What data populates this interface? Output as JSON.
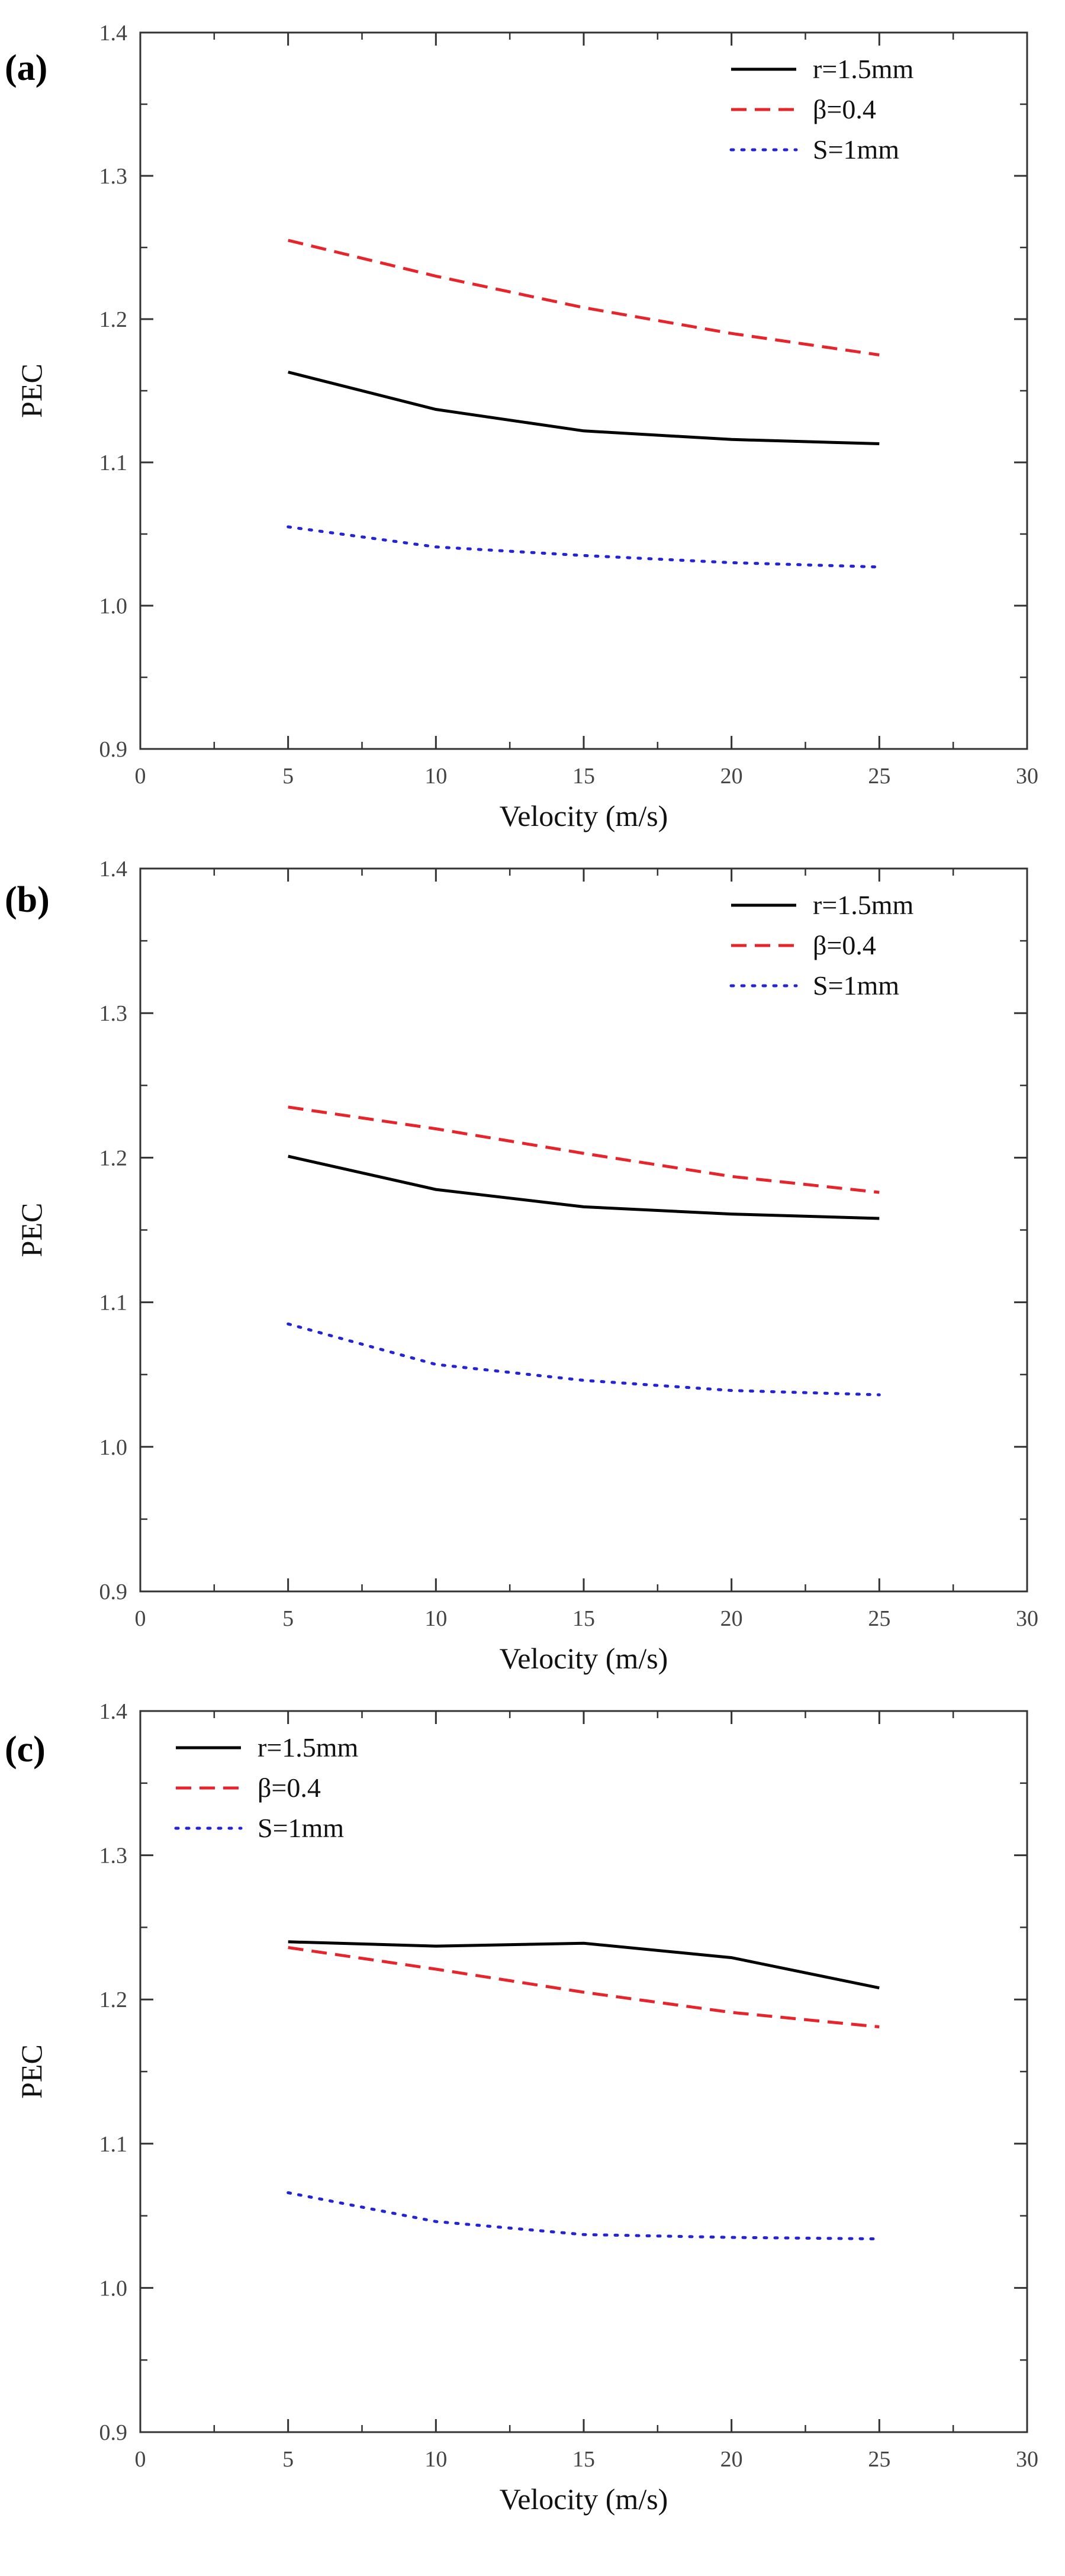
{
  "chart_data": [
    {
      "type": "line",
      "panel_label": "(a)",
      "xlabel": "Velocity (m/s)",
      "ylabel": "PEC",
      "xlim": [
        0,
        30
      ],
      "ylim": [
        0.9,
        1.4
      ],
      "xticks": [
        0,
        5,
        10,
        15,
        20,
        25,
        30
      ],
      "xtick_labels": [
        "0",
        "5",
        "10",
        "15",
        "20",
        "25",
        "30"
      ],
      "yticks": [
        0.9,
        1.0,
        1.1,
        1.2,
        1.3,
        1.4
      ],
      "ytick_labels": [
        "0.9",
        "1.0",
        "1.1",
        "1.2",
        "1.3",
        "1.4"
      ],
      "grid": false,
      "legend_position": "top-right",
      "x": [
        5,
        10,
        15,
        20,
        25
      ],
      "series": [
        {
          "name": "r=1.5mm",
          "values": [
            1.163,
            1.137,
            1.122,
            1.116,
            1.113
          ],
          "color": "#000000",
          "style": "solid"
        },
        {
          "name": "β=0.4",
          "values": [
            1.255,
            1.23,
            1.208,
            1.19,
            1.175
          ],
          "color": "#e8232a",
          "style": "dashed"
        },
        {
          "name": "S=1mm",
          "values": [
            1.055,
            1.041,
            1.035,
            1.03,
            1.027
          ],
          "color": "#2323d8",
          "style": "dotted"
        }
      ]
    },
    {
      "type": "line",
      "panel_label": "(b)",
      "xlabel": "Velocity (m/s)",
      "ylabel": "PEC",
      "xlim": [
        0,
        30
      ],
      "ylim": [
        0.9,
        1.4
      ],
      "xticks": [
        0,
        5,
        10,
        15,
        20,
        25,
        30
      ],
      "xtick_labels": [
        "0",
        "5",
        "10",
        "15",
        "20",
        "25",
        "30"
      ],
      "yticks": [
        0.9,
        1.0,
        1.1,
        1.2,
        1.3,
        1.4
      ],
      "ytick_labels": [
        "0.9",
        "1.0",
        "1.1",
        "1.2",
        "1.3",
        "1.4"
      ],
      "grid": false,
      "legend_position": "top-right",
      "x": [
        5,
        10,
        15,
        20,
        25
      ],
      "series": [
        {
          "name": "r=1.5mm",
          "values": [
            1.201,
            1.178,
            1.166,
            1.161,
            1.158
          ],
          "color": "#000000",
          "style": "solid"
        },
        {
          "name": "β=0.4",
          "values": [
            1.235,
            1.22,
            1.203,
            1.187,
            1.176
          ],
          "color": "#e8232a",
          "style": "dashed"
        },
        {
          "name": "S=1mm",
          "values": [
            1.085,
            1.057,
            1.046,
            1.039,
            1.036
          ],
          "color": "#2323d8",
          "style": "dotted"
        }
      ]
    },
    {
      "type": "line",
      "panel_label": "(c)",
      "xlabel": "Velocity (m/s)",
      "ylabel": "PEC",
      "xlim": [
        0,
        30
      ],
      "ylim": [
        0.9,
        1.4
      ],
      "xticks": [
        0,
        5,
        10,
        15,
        20,
        25,
        30
      ],
      "xtick_labels": [
        "0",
        "5",
        "10",
        "15",
        "20",
        "25",
        "30"
      ],
      "yticks": [
        0.9,
        1.0,
        1.1,
        1.2,
        1.3,
        1.4
      ],
      "ytick_labels": [
        "0.9",
        "1.0",
        "1.1",
        "1.2",
        "1.3",
        "1.4"
      ],
      "grid": false,
      "legend_position": "top-left",
      "x": [
        5,
        10,
        15,
        20,
        25
      ],
      "series": [
        {
          "name": "r=1.5mm",
          "values": [
            1.24,
            1.237,
            1.239,
            1.229,
            1.208
          ],
          "color": "#000000",
          "style": "solid"
        },
        {
          "name": "β=0.4",
          "values": [
            1.236,
            1.221,
            1.205,
            1.191,
            1.181
          ],
          "color": "#e8232a",
          "style": "dashed"
        },
        {
          "name": "S=1mm",
          "values": [
            1.066,
            1.046,
            1.037,
            1.035,
            1.034
          ],
          "color": "#2323d8",
          "style": "dotted"
        }
      ]
    }
  ]
}
